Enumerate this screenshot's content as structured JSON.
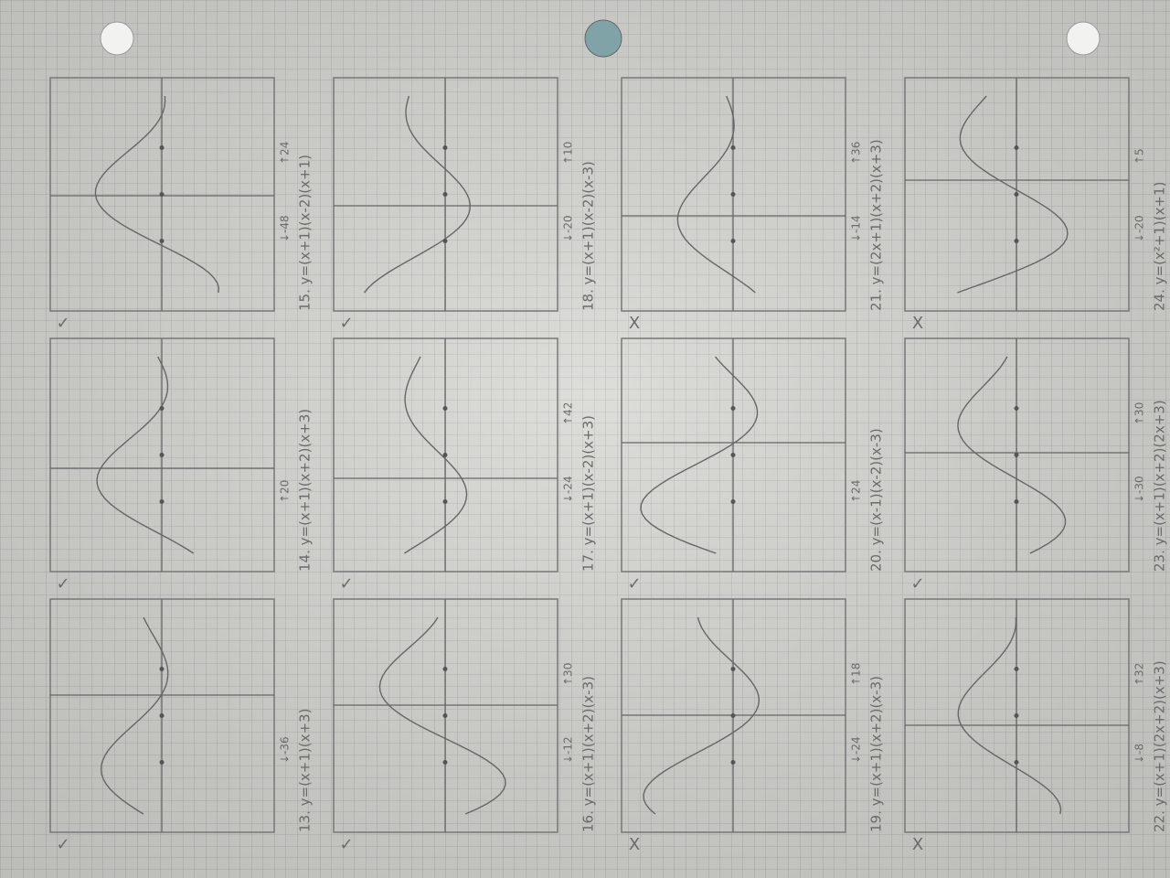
{
  "panels": [
    {
      "label": "13. y=(x+1)(x+3)",
      "notes": [
        "↓-36"
      ],
      "mark": "✓"
    },
    {
      "label": "14. y=(x+1)(x+2)(x+3)",
      "notes": [
        "↑20"
      ],
      "mark": "✓"
    },
    {
      "label": "15. y=(x+1)(x-2)(x+1)",
      "notes": [
        "↓-48",
        "↑24"
      ],
      "mark": "✓"
    },
    {
      "label": "16. y=(x+1)(x+2)(x-3)",
      "notes": [
        "↓-12",
        "↑30"
      ],
      "mark": "✓"
    },
    {
      "label": "17. y=(x+1)(x-2)(x+3)",
      "notes": [
        "↓-24",
        "↑42"
      ],
      "mark": "✓"
    },
    {
      "label": "18. y=(x+1)(x-2)(x-3)",
      "notes": [
        "↓-20",
        "↑10"
      ],
      "mark": "✓"
    },
    {
      "label": "19. y=(x+1)(x+2)(x-3)",
      "notes": [
        "↓-24",
        "↑18"
      ],
      "mark": "X"
    },
    {
      "label": "20. y=(x-1)(x-2)(x-3)",
      "notes": [
        "↑24"
      ],
      "mark": "✓"
    },
    {
      "label": "21. y=(2x+1)(x+2)(x+3)",
      "notes": [
        "↓-14",
        "↑36"
      ],
      "mark": "X"
    },
    {
      "label": "22. y=(x+1)(2x+2)(x+3)",
      "notes": [
        "↓-8",
        "↑32"
      ],
      "mark": "X"
    },
    {
      "label": "23. y=(x+1)(x+2)(2x+3)",
      "notes": [
        "↓-30",
        "↑30"
      ],
      "mark": "✓"
    },
    {
      "label": "24. y=(x²+1)(x+1)",
      "notes": [
        "↓-20",
        "↑5"
      ],
      "mark": "X"
    }
  ]
}
